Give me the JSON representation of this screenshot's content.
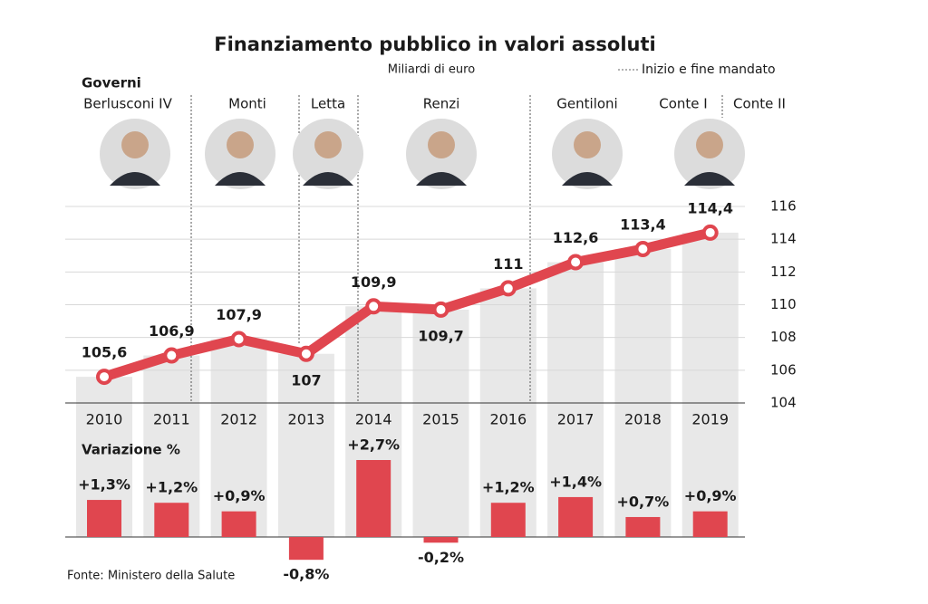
{
  "chart_data": [
    {
      "type": "line",
      "title": "Finanziamento pubblico in valori assoluti",
      "subtitle": "Miliardi di euro",
      "legend_note": "Inizio e fine mandato",
      "governments_heading": "Governi",
      "governments": [
        "Berlusconi IV",
        "Monti",
        "Letta",
        "Renzi",
        "Gentiloni",
        "Conte I",
        "Conte II"
      ],
      "categories": [
        "2010",
        "2011",
        "2012",
        "2013",
        "2014",
        "2015",
        "2016",
        "2017",
        "2018",
        "2019"
      ],
      "values": [
        105.6,
        106.9,
        107.9,
        107,
        109.9,
        109.7,
        111,
        112.6,
        113.4,
        114.4
      ],
      "value_labels": [
        "105,6",
        "106,9",
        "107,9",
        "107",
        "109,9",
        "109,7",
        "111",
        "112,6",
        "113,4",
        "114,4"
      ],
      "color": "#e0464f",
      "bar_color": "#e8e8e8",
      "ylim": [
        104,
        116
      ],
      "yticks": [
        104,
        106,
        108,
        110,
        112,
        114,
        116
      ],
      "grid": true
    },
    {
      "type": "bar",
      "title": "Variazione %",
      "values": [
        1.3,
        1.2,
        0.9,
        -0.8,
        2.7,
        -0.2,
        1.2,
        1.4,
        0.7,
        0.9
      ],
      "value_labels": [
        "+1,3%",
        "+1,2%",
        "+0,9%",
        "-0,8%",
        "+2,7%",
        "-0,2%",
        "+1,2%",
        "+1,4%",
        "+0,7%",
        "+0,9%"
      ],
      "color": "#e0464f"
    }
  ],
  "source": "Fonte: Ministero della Salute"
}
